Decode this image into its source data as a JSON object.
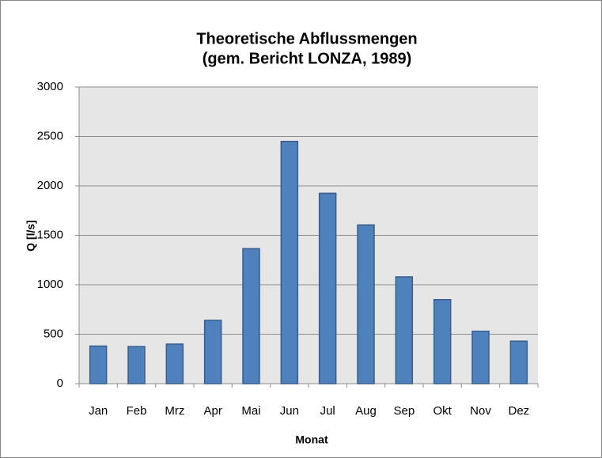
{
  "chart_data": {
    "type": "bar",
    "title": [
      "Theoretische Abflussmengen",
      "(gem. Bericht LONZA, 1989)"
    ],
    "x_label": "Monat",
    "y_label": "Q [l/s]",
    "categories": [
      "Jan",
      "Feb",
      "Mrz",
      "Apr",
      "Mai",
      "Jun",
      "Jul",
      "Aug",
      "Sep",
      "Okt",
      "Nov",
      "Dez"
    ],
    "values": [
      380,
      375,
      400,
      640,
      1365,
      2450,
      1925,
      1605,
      1080,
      850,
      530,
      430
    ],
    "color": "#4f81bd",
    "ylim": [
      0,
      3000
    ],
    "yticks": [
      0,
      500,
      1000,
      1500,
      2000,
      2500,
      3000
    ],
    "grid": true
  }
}
